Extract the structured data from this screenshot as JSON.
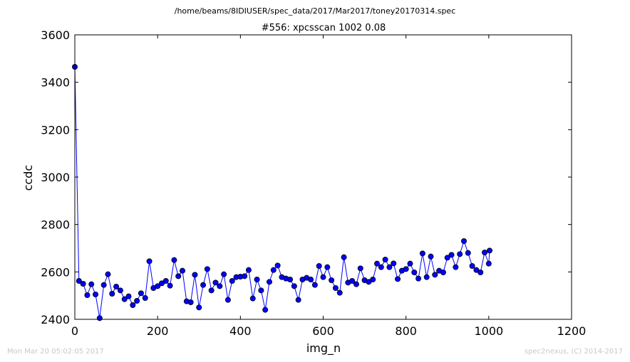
{
  "chart_data": {
    "type": "line",
    "suptitle": "/home/beams/8IDIUSER/spec_data/2017/Mar2017/toney20170314.spec",
    "title": "#556: xpcsscan 1002 0.08",
    "xlabel": "img_n",
    "ylabel": "ccdc",
    "xlim": [
      0,
      1200
    ],
    "ylim": [
      2400,
      3600
    ],
    "xticks": [
      0,
      200,
      400,
      600,
      800,
      1000,
      1200
    ],
    "yticks": [
      2400,
      2600,
      2800,
      3000,
      3200,
      3400,
      3600
    ],
    "marker": "circle",
    "color": "#0000ff",
    "grid": false,
    "series": [
      {
        "x": [
          0,
          10,
          20,
          30,
          40,
          50,
          60,
          70,
          80,
          90,
          100,
          110,
          120,
          130,
          140,
          150,
          160,
          170,
          180,
          190,
          200,
          210,
          220,
          230,
          240,
          250,
          260,
          270,
          280,
          290,
          300,
          310,
          320,
          330,
          340,
          350,
          360,
          370,
          380,
          390,
          400,
          410,
          420,
          430,
          440,
          450,
          460,
          470,
          480,
          490,
          500,
          510,
          520,
          530,
          540,
          550,
          560,
          570,
          580,
          590,
          600,
          610,
          620,
          630,
          640,
          650,
          660,
          670,
          680,
          690,
          700,
          710,
          720,
          730,
          740,
          750,
          760,
          770,
          780,
          790,
          800,
          810,
          820,
          830,
          840,
          850,
          860,
          870,
          880,
          890,
          900,
          910,
          920,
          930,
          940,
          950,
          960,
          970,
          980,
          990,
          1000,
          1002
        ],
        "y": [
          3465,
          2562,
          2550,
          2502,
          2548,
          2505,
          2405,
          2545,
          2590,
          2508,
          2538,
          2522,
          2485,
          2497,
          2460,
          2478,
          2510,
          2490,
          2645,
          2532,
          2540,
          2552,
          2562,
          2542,
          2650,
          2582,
          2605,
          2476,
          2472,
          2588,
          2450,
          2545,
          2612,
          2522,
          2555,
          2540,
          2590,
          2482,
          2562,
          2578,
          2580,
          2582,
          2608,
          2488,
          2568,
          2522,
          2440,
          2558,
          2608,
          2627,
          2578,
          2572,
          2568,
          2540,
          2482,
          2568,
          2575,
          2568,
          2545,
          2625,
          2578,
          2620,
          2565,
          2532,
          2512,
          2662,
          2555,
          2562,
          2548,
          2615,
          2565,
          2558,
          2568,
          2635,
          2620,
          2652,
          2620,
          2636,
          2570,
          2605,
          2612,
          2635,
          2598,
          2572,
          2678,
          2578,
          2665,
          2588,
          2605,
          2598,
          2660,
          2672,
          2620,
          2675,
          2730,
          2680,
          2625,
          2608,
          2598,
          2682,
          2635,
          2690
        ]
      }
    ]
  },
  "footer": {
    "timestamp": "Mon Mar 20 05:02:05 2017",
    "credit": "spec2nexus, (C) 2014-2017"
  }
}
